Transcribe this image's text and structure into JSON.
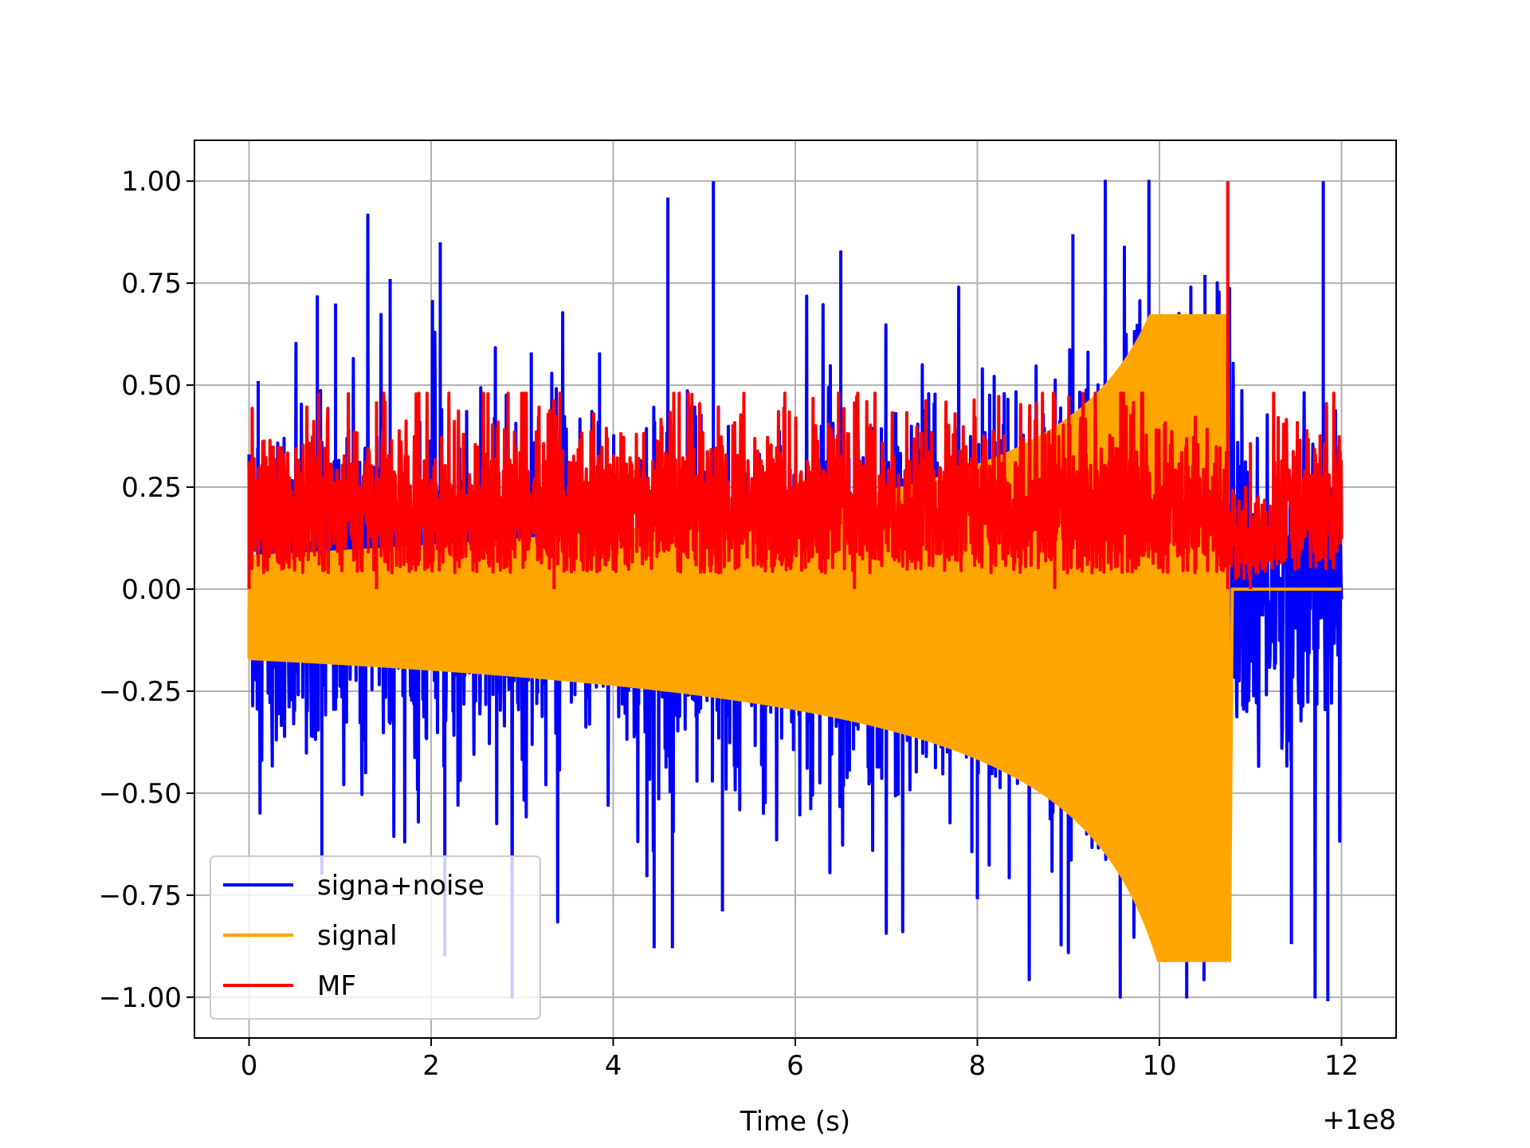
{
  "chart_data": {
    "type": "line",
    "title": "",
    "xlabel": "Time (s)",
    "ylabel": "",
    "x_offset_label": "+1e8",
    "xlim": [
      -0.6,
      12.6
    ],
    "ylim": [
      -1.1,
      1.1
    ],
    "xticks": [
      0,
      2,
      4,
      6,
      8,
      10,
      12
    ],
    "xtick_labels": [
      "0",
      "2",
      "4",
      "6",
      "8",
      "10",
      "12"
    ],
    "yticks": [
      1.0,
      0.75,
      0.5,
      0.25,
      0.0,
      -0.25,
      -0.5,
      -0.75,
      -1.0
    ],
    "ytick_labels": [
      "1.00",
      "0.75",
      "0.50",
      "0.25",
      "0.00",
      "−0.25",
      "−0.50",
      "−0.75",
      "−1.00"
    ],
    "grid": true,
    "legend_position": "lower-left",
    "series": [
      {
        "name": "signa+noise",
        "color": "#0000ff",
        "x_range": [
          0,
          12
        ],
        "description_points": [
          {
            "x": 0,
            "y": 0.33
          },
          {
            "x": 0.1,
            "y": 0.51
          },
          {
            "x": 0.75,
            "y": 0.72
          },
          {
            "x": 0.95,
            "y": 0.7
          },
          {
            "x": 1.55,
            "y": 0.76
          },
          {
            "x": 2.1,
            "y": 0.85
          },
          {
            "x": 3.1,
            "y": 0.58
          },
          {
            "x": 3.85,
            "y": 0.58
          },
          {
            "x": 4.6,
            "y": 0.96
          },
          {
            "x": 5.1,
            "y": 1.0
          },
          {
            "x": 6.5,
            "y": 0.83
          },
          {
            "x": 9.05,
            "y": 0.87
          },
          {
            "x": 10.5,
            "y": 0.77
          },
          {
            "x": 11.8,
            "y": 1.0
          },
          {
            "x": 0.8,
            "y": -0.7
          },
          {
            "x": 2.15,
            "y": -0.9
          },
          {
            "x": 4.45,
            "y": -0.88
          },
          {
            "x": 4.65,
            "y": -0.88
          },
          {
            "x": 5.2,
            "y": -0.79
          },
          {
            "x": 8.0,
            "y": -0.76
          },
          {
            "x": 11.45,
            "y": -0.87
          },
          {
            "x": 11.85,
            "y": -1.01
          }
        ]
      },
      {
        "name": "signal",
        "color": "#ffa500",
        "x_range": [
          0,
          12
        ],
        "envelope_start": [
          -0.17,
          0.08
        ],
        "envelope_mid": [
          -0.22,
          0.16
        ],
        "peak": {
          "x": 10.75,
          "max": 0.67,
          "min": -0.91
        },
        "after_merger_value": 0.0
      },
      {
        "name": "MF",
        "color": "#ff0000",
        "x_range": [
          0,
          12
        ],
        "description_points": [
          {
            "x": 0,
            "y": 0.3
          },
          {
            "x": 1.4,
            "y": 0.46
          },
          {
            "x": 3.35,
            "y": 0.46
          },
          {
            "x": 6.65,
            "y": 0.46
          },
          {
            "x": 8.85,
            "y": 0.47
          },
          {
            "x": 10.75,
            "y": 1.0
          },
          {
            "x": 11.0,
            "y": 0.36
          }
        ],
        "baseline": 0.0
      }
    ]
  }
}
